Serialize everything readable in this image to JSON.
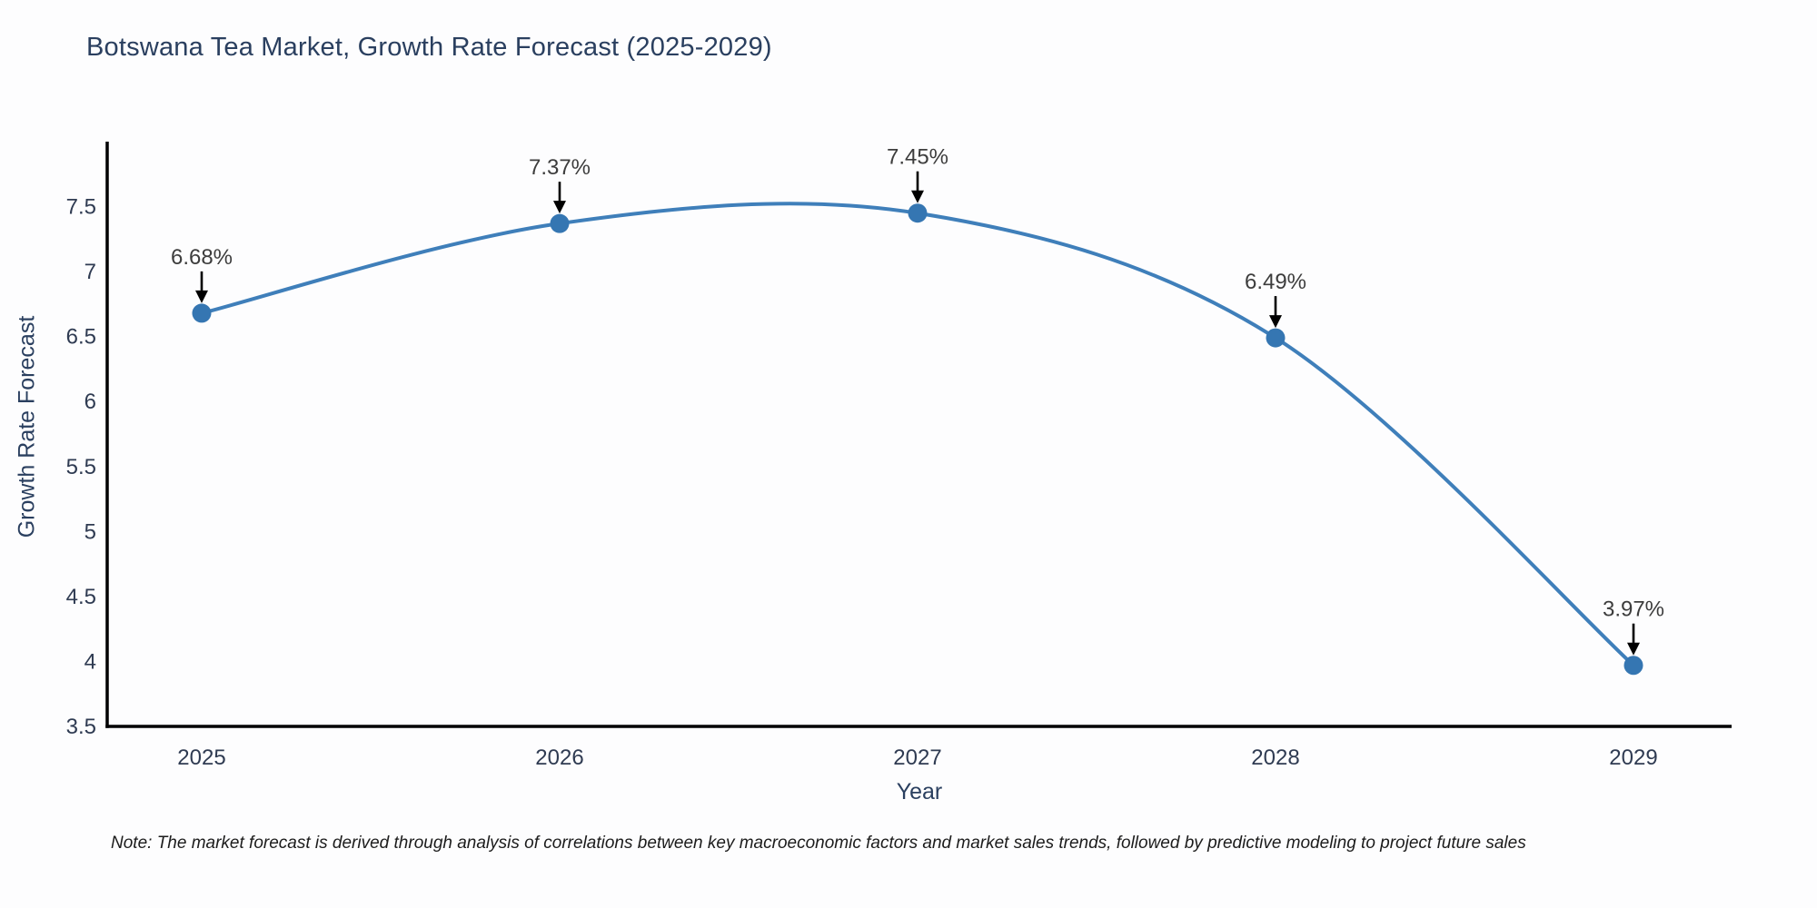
{
  "note": "Note: The market forecast is derived through analysis of correlations between key macroeconomic factors and market sales trends, followed by predictive modeling to project future sales",
  "chart_data": {
    "type": "line",
    "title": "Botswana Tea Market, Growth Rate Forecast (2025-2029)",
    "xlabel": "Year",
    "ylabel": "Growth Rate Forecast",
    "x": [
      2025,
      2026,
      2027,
      2028,
      2029
    ],
    "series": [
      {
        "name": "Growth Rate Forecast",
        "values": [
          6.68,
          7.37,
          7.45,
          6.49,
          3.97
        ]
      }
    ],
    "point_labels": [
      "6.68%",
      "7.37%",
      "7.45%",
      "6.49%",
      "3.97%"
    ],
    "yticks": [
      3.5,
      4,
      4.5,
      5,
      5.5,
      6,
      6.5,
      7,
      7.5
    ],
    "ylim": [
      3.5,
      8.0
    ],
    "grid": false,
    "legend_position": "none",
    "line_shape": "spline",
    "line_color": "#3f7fba",
    "marker_color": "#3576b2",
    "axis_color": "#000000",
    "annotation_arrow_color": "#000000",
    "annotation_text_color": "#3d3d3d",
    "text_color": "#2a3f5f"
  }
}
